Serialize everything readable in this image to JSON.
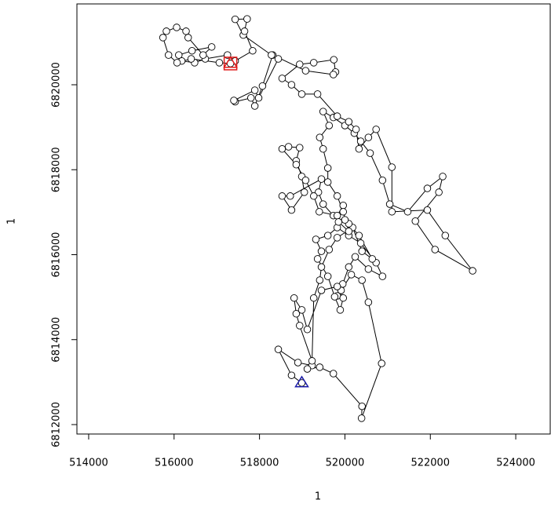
{
  "chart_data": {
    "type": "track",
    "xlabel": "1",
    "ylabel": "1",
    "xlim": [
      513725,
      524807
    ],
    "ylim": [
      6811778,
      6821903
    ],
    "xticks": [
      514000,
      516000,
      518000,
      520000,
      522000,
      524000
    ],
    "yticks": [
      6812000,
      6814000,
      6816000,
      6818000,
      6820000
    ],
    "color": "#000000",
    "start_color": "#1a1aa8",
    "end_color": "#e01a1a",
    "x": [
      518990,
      518750,
      518440,
      518900,
      519230,
      519120,
      519410,
      519730,
      520400,
      520390,
      520860,
      520550,
      520400,
      520150,
      519910,
      519820,
      519950,
      520090,
      520240,
      520550,
      520880,
      520730,
      520370,
      520090,
      519820,
      519600,
      519320,
      519450,
      519360,
      519600,
      519760,
      519890,
      519960,
      519820,
      519450,
      519120,
      518990,
      518810,
      518860,
      518940,
      519230,
      519270,
      519410,
      519450,
      519630,
      519820,
      520180,
      520400,
      520640,
      520330,
      520090,
      519730,
      519490,
      519380,
      519450,
      518720,
      518530,
      518750,
      519050,
      518990,
      518860,
      518940,
      518680,
      518530,
      518860,
      519080,
      519270,
      519400,
      519820,
      519960,
      520000,
      519850,
      520090,
      519960,
      519820,
      519600,
      519600,
      519490,
      519410,
      519630,
      519490,
      519730,
      520000,
      520220,
      520370,
      520590,
      520880,
      521050,
      521470,
      521930,
      522290,
      522200,
      521650,
      522110,
      522990,
      522350,
      521930,
      521100,
      521100,
      520730,
      520550,
      520330,
      520260,
      520090,
      519820,
      519360,
      518990,
      518750,
      518530,
      518940,
      519270,
      519740,
      519780,
      519730,
      519080,
      518310,
      518070,
      517890,
      517800,
      517430,
      517400,
      517890,
      517980,
      518440,
      518280,
      517620,
      517430,
      517710,
      517650,
      517840,
      517430,
      517250,
      516730,
      516480,
      516180,
      516110,
      516420,
      516880,
      516680,
      516330,
      516280,
      516060,
      515820,
      515740,
      515870,
      516070,
      516400,
      517060,
      517320
    ],
    "values": [
      6812980,
      6813160,
      6813770,
      6813460,
      6813390,
      6813310,
      6813350,
      6813200,
      6812430,
      6812150,
      6813440,
      6814880,
      6815400,
      6815530,
      6815160,
      6815030,
      6815310,
      6815710,
      6815950,
      6815660,
      6815490,
      6815810,
      6816270,
      6816450,
      6816640,
      6816450,
      6816360,
      6816080,
      6815900,
      6815490,
      6815010,
      6814700,
      6814980,
      6815250,
      6815160,
      6814240,
      6814700,
      6814980,
      6814610,
      6814330,
      6813500,
      6814980,
      6815400,
      6815710,
      6816120,
      6816400,
      6816640,
      6816080,
      6815900,
      6816450,
      6816730,
      6816920,
      6817190,
      6817470,
      6817780,
      6817380,
      6817380,
      6817050,
      6817470,
      6817840,
      6818210,
      6818520,
      6818540,
      6818490,
      6818120,
      6817750,
      6817380,
      6817010,
      6816920,
      6817160,
      6816820,
      6816770,
      6816550,
      6817010,
      6817380,
      6817710,
      6818040,
      6818490,
      6818760,
      6819040,
      6819370,
      6819230,
      6819040,
      6818860,
      6818670,
      6818390,
      6817750,
      6817190,
      6817010,
      6817560,
      6817840,
      6817470,
      6816790,
      6816120,
      6815620,
      6816450,
      6817050,
      6817010,
      6818060,
      6818950,
      6818760,
      6818490,
      6818950,
      6819130,
      6819260,
      6819780,
      6819780,
      6820000,
      6820150,
      6820480,
      6820520,
      6820590,
      6820300,
      6820240,
      6820330,
      6820700,
      6819970,
      6819500,
      6819690,
      6819600,
      6819630,
      6819870,
      6819690,
      6820610,
      6820700,
      6821170,
      6821540,
      6821550,
      6821260,
      6820800,
      6820560,
      6820700,
      6820610,
      6820520,
      6820560,
      6820700,
      6820800,
      6820890,
      6820700,
      6821110,
      6821260,
      6821350,
      6821260,
      6821110,
      6820700,
      6820520,
      6820610,
      6820520,
      6820500
    ]
  }
}
